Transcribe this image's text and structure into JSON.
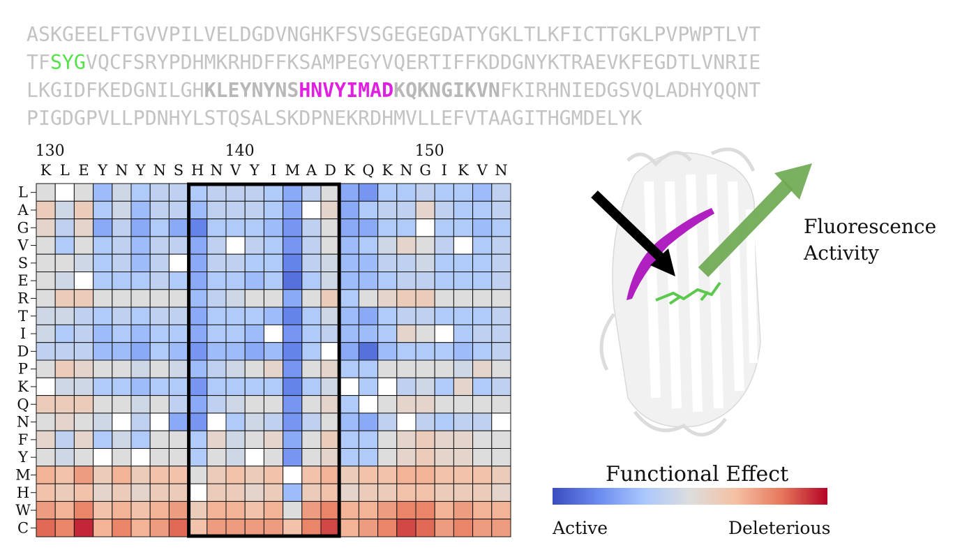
{
  "sequence_lines": [
    [
      {
        "t": "ASKGEELFTGVVPILVELDGDVNGHKFSVSGEGEGDATYGKLTLKFICTTGKLPVPWPTLVT",
        "s": "plain"
      }
    ],
    [
      {
        "t": "TF",
        "s": "plain"
      },
      {
        "t": "SYG",
        "s": "chrom"
      },
      {
        "t": "VQCFSRYPDHMKRHDFFKSAMPEGYVQERTIFFKDDGNYKTRAEVKFEGDTLVNRIE",
        "s": "plain"
      }
    ],
    [
      {
        "t": "LKGIDFKEDGNILGH",
        "s": "plain"
      },
      {
        "t": "KLEYNYNS",
        "s": "bold"
      },
      {
        "t": "HNVYIMAD",
        "s": "mag"
      },
      {
        "t": "KQKNGIKVN",
        "s": "bold"
      },
      {
        "t": "FKIRHNIEDGSVQLADHYQQNT",
        "s": "plain"
      }
    ],
    [
      {
        "t": "PIGDGPVLLPDNHYLSTQSALSKDPNEKRDHMVLLEFVTAAGITHGMDELYK",
        "s": "plain"
      }
    ]
  ],
  "chart_data": {
    "type": "heatmap",
    "position_ticks": [
      {
        "label": "130",
        "index": 0
      },
      {
        "label": "140",
        "index": 10
      },
      {
        "label": "150",
        "index": 20
      }
    ],
    "x_residues": [
      "K",
      "L",
      "E",
      "Y",
      "N",
      "Y",
      "N",
      "S",
      "H",
      "N",
      "V",
      "Y",
      "I",
      "M",
      "A",
      "D",
      "K",
      "Q",
      "K",
      "N",
      "G",
      "I",
      "K",
      "V",
      "N"
    ],
    "y_mutations": [
      "L",
      "A",
      "G",
      "V",
      "S",
      "E",
      "R",
      "T",
      "I",
      "D",
      "P",
      "K",
      "Q",
      "N",
      "F",
      "Y",
      "M",
      "H",
      "W",
      "C"
    ],
    "highlight_box": {
      "start_col": 8,
      "end_col": 15
    },
    "colormap": "coolwarm",
    "colorbar": {
      "title": "Functional Effect",
      "low_label": "Active",
      "high_label": "Deleterious",
      "range": [
        -1,
        1
      ]
    },
    "values": [
      [
        0.0,
        "wt",
        0.0,
        -0.4,
        -0.1,
        -0.3,
        -0.2,
        -0.2,
        -0.3,
        -0.2,
        -0.2,
        -0.2,
        -0.3,
        -0.5,
        -0.2,
        0.0,
        -0.5,
        -0.6,
        -0.3,
        -0.3,
        -0.2,
        -0.3,
        -0.3,
        -0.4,
        -0.2
      ],
      [
        0.2,
        -0.1,
        0.2,
        -0.3,
        -0.1,
        -0.4,
        -0.2,
        -0.2,
        -0.4,
        -0.2,
        -0.2,
        -0.2,
        -0.3,
        -0.5,
        "wt",
        0.1,
        -0.5,
        -0.3,
        -0.2,
        -0.2,
        0.1,
        -0.2,
        -0.3,
        -0.3,
        -0.2
      ],
      [
        0.1,
        -0.2,
        0.1,
        -0.5,
        -0.2,
        -0.5,
        -0.3,
        -0.5,
        -0.7,
        -0.3,
        -0.3,
        -0.3,
        -0.4,
        -0.6,
        -0.2,
        0.0,
        -0.5,
        -0.5,
        -0.3,
        -0.3,
        "wt",
        -0.3,
        -0.3,
        -0.4,
        -0.3
      ],
      [
        0.0,
        -0.3,
        0.0,
        -0.3,
        -0.2,
        -0.4,
        -0.2,
        -0.2,
        -0.5,
        -0.2,
        "wt",
        -0.2,
        -0.3,
        -0.6,
        -0.2,
        0.0,
        -0.4,
        -0.3,
        -0.1,
        0.1,
        0.0,
        -0.2,
        "wt",
        -0.3,
        -0.2
      ],
      [
        0.0,
        0.0,
        -0.1,
        -0.3,
        -0.2,
        -0.4,
        -0.2,
        "wt",
        -0.5,
        -0.2,
        -0.2,
        -0.3,
        -0.3,
        -0.7,
        -0.2,
        -0.1,
        -0.4,
        -0.4,
        -0.2,
        -0.2,
        -0.1,
        -0.3,
        -0.3,
        -0.3,
        -0.2
      ],
      [
        0.0,
        -0.1,
        "wt",
        -0.3,
        -0.3,
        -0.3,
        -0.2,
        -0.3,
        -0.5,
        -0.3,
        -0.3,
        -0.4,
        -0.3,
        -0.8,
        -0.3,
        -0.1,
        -0.4,
        -0.4,
        -0.3,
        -0.2,
        -0.2,
        -0.3,
        -0.3,
        -0.3,
        -0.2
      ],
      [
        0.0,
        0.2,
        0.2,
        0.0,
        0.0,
        0.0,
        0.0,
        0.0,
        -0.4,
        -0.2,
        -0.1,
        0.0,
        0.0,
        -0.5,
        0.0,
        0.2,
        -0.3,
        0.0,
        0.1,
        0.2,
        0.2,
        0.0,
        0.0,
        0.0,
        0.0
      ],
      [
        -0.1,
        -0.1,
        -0.2,
        -0.3,
        -0.2,
        -0.3,
        -0.2,
        -0.2,
        -0.5,
        -0.3,
        -0.3,
        -0.3,
        -0.4,
        -0.7,
        -0.3,
        -0.1,
        -0.4,
        -0.5,
        -0.3,
        -0.2,
        -0.2,
        -0.3,
        -0.3,
        -0.3,
        -0.2
      ],
      [
        -0.1,
        -0.3,
        -0.2,
        -0.4,
        -0.3,
        -0.4,
        -0.3,
        -0.3,
        -0.5,
        -0.3,
        -0.3,
        -0.4,
        "wt",
        -0.6,
        -0.3,
        -0.2,
        -0.4,
        -0.4,
        -0.3,
        0.1,
        0.0,
        "wt",
        -0.3,
        -0.2,
        -0.2
      ],
      [
        -0.2,
        -0.2,
        -0.2,
        -0.4,
        -0.4,
        -0.5,
        -0.3,
        -0.4,
        -0.6,
        -0.4,
        -0.4,
        -0.5,
        -0.4,
        -0.7,
        -0.3,
        "wt",
        -0.5,
        -0.8,
        -0.4,
        -0.3,
        -0.3,
        -0.3,
        -0.4,
        -0.3,
        -0.2
      ],
      [
        0.0,
        0.2,
        0.1,
        0.0,
        0.0,
        -0.1,
        0.0,
        -0.1,
        -0.4,
        -0.2,
        -0.1,
        0.0,
        0.1,
        -0.6,
        0.0,
        0.1,
        -0.3,
        -0.3,
        0.0,
        0.0,
        0.0,
        0.0,
        -0.1,
        0.1,
        0.0
      ],
      [
        "wt",
        -0.1,
        -0.1,
        -0.3,
        -0.3,
        -0.4,
        -0.3,
        -0.3,
        -0.6,
        -0.3,
        -0.3,
        -0.3,
        -0.3,
        -0.7,
        -0.3,
        -0.1,
        "wt",
        -0.3,
        "wt",
        -0.2,
        -0.1,
        -0.3,
        0.1,
        -0.3,
        -0.2
      ],
      [
        0.2,
        0.2,
        0.2,
        0.0,
        0.0,
        -0.1,
        0.0,
        -0.2,
        -0.5,
        -0.2,
        -0.1,
        0.0,
        0.0,
        -0.6,
        0.0,
        0.1,
        -0.3,
        "wt",
        0.0,
        0.1,
        0.1,
        0.0,
        0.0,
        0.0,
        0.0
      ],
      [
        0.0,
        0.1,
        0.0,
        -0.1,
        "wt",
        -0.2,
        "wt",
        -0.5,
        -0.6,
        "wt",
        -0.3,
        -0.1,
        -0.2,
        -0.6,
        -0.2,
        0.0,
        -0.4,
        -0.5,
        -0.2,
        "wt",
        -0.2,
        -0.3,
        -0.2,
        -0.2,
        "wt"
      ],
      [
        0.1,
        -0.2,
        0.1,
        -0.3,
        -0.1,
        -0.3,
        0.0,
        0.0,
        -0.3,
        0.1,
        -0.1,
        0.0,
        0.1,
        -0.5,
        0.0,
        0.2,
        -0.3,
        -0.3,
        0.0,
        0.1,
        0.2,
        0.1,
        0.1,
        0.0,
        0.0
      ],
      [
        0.0,
        -0.1,
        0.0,
        "wt",
        0.0,
        "wt",
        0.0,
        0.0,
        -0.3,
        0.0,
        -0.1,
        "wt",
        0.0,
        -0.6,
        0.0,
        0.1,
        -0.3,
        -0.3,
        0.0,
        0.1,
        0.2,
        0.1,
        0.1,
        0.0,
        0.0
      ],
      [
        0.4,
        0.3,
        0.5,
        0.2,
        0.4,
        0.2,
        0.3,
        0.3,
        0.0,
        0.2,
        0.3,
        0.2,
        0.3,
        "wt",
        0.3,
        0.4,
        0.2,
        0.3,
        0.3,
        0.4,
        0.4,
        0.3,
        0.3,
        0.3,
        0.2
      ],
      [
        0.3,
        0.2,
        0.3,
        0.1,
        0.2,
        0.1,
        0.2,
        0.2,
        "wt",
        0.2,
        0.2,
        0.1,
        0.2,
        -0.4,
        0.2,
        0.3,
        0.1,
        0.2,
        0.2,
        0.3,
        0.3,
        0.2,
        0.2,
        0.2,
        0.1
      ],
      [
        0.5,
        0.4,
        0.6,
        0.3,
        0.4,
        0.3,
        0.4,
        0.5,
        0.2,
        0.4,
        0.4,
        0.3,
        0.4,
        0.0,
        0.5,
        0.6,
        0.4,
        0.4,
        0.5,
        0.6,
        0.6,
        0.4,
        0.5,
        0.4,
        0.4
      ],
      [
        0.7,
        0.6,
        0.9,
        0.4,
        0.6,
        0.4,
        0.5,
        0.7,
        0.3,
        0.5,
        0.5,
        0.5,
        0.5,
        0.3,
        0.6,
        0.8,
        0.4,
        0.5,
        0.6,
        0.8,
        0.7,
        0.5,
        0.6,
        0.5,
        0.5
      ]
    ]
  },
  "structure": {
    "label_line1": "Fluorescence",
    "label_line2": "Activity",
    "colors": {
      "helix": "#b020c0",
      "chromophore": "#5cc84e",
      "arrow_in": "#000000",
      "arrow_out": "#6aa84f",
      "protein": "#e8e8e8"
    }
  }
}
